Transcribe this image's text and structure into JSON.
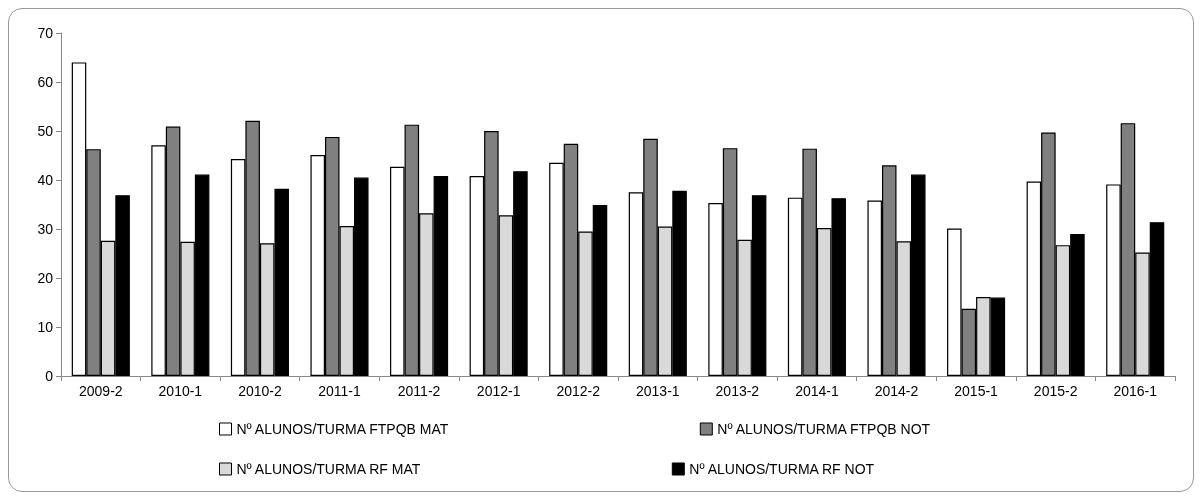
{
  "chart_data": {
    "type": "bar",
    "categories": [
      "2009-2",
      "2010-1",
      "2010-2",
      "2011-1",
      "2011-2",
      "2012-1",
      "2012-2",
      "2013-1",
      "2013-2",
      "2014-1",
      "2014-2",
      "2015-1",
      "2015-2",
      "2016-1"
    ],
    "series": [
      {
        "name": "Nº ALUNOS/TURMA FTPQB MAT",
        "color": "#ffffff",
        "values": [
          64,
          47.1,
          44.3,
          45.1,
          42.7,
          40.8,
          43.5,
          37.5,
          35.3,
          36.4,
          35.8,
          30.1,
          39.7,
          39.1
        ]
      },
      {
        "name": "Nº ALUNOS/TURMA FTPQB NOT",
        "color": "#808080",
        "values": [
          46.3,
          50.9,
          52.1,
          48.8,
          51.3,
          50.0,
          47.4,
          48.4,
          46.5,
          46.4,
          43.0,
          13.7,
          49.7,
          51.6
        ]
      },
      {
        "name": "Nº ALUNOS/TURMA RF MAT",
        "color": "#d9d9d9",
        "values": [
          27.6,
          27.4,
          27.1,
          30.6,
          33.2,
          32.8,
          29.5,
          30.5,
          27.8,
          30.2,
          27.5,
          16.1,
          26.7,
          25.2
        ]
      },
      {
        "name": "Nº ALUNOS/TURMA RF NOT",
        "color": "#000000",
        "values": [
          36.9,
          41.1,
          38.2,
          40.5,
          40.8,
          41.8,
          34.9,
          37.8,
          36.9,
          36.3,
          41.1,
          16.0,
          29.0,
          31.4
        ]
      }
    ],
    "ylim": [
      0,
      70
    ],
    "yticks": [
      0,
      10,
      20,
      30,
      40,
      50,
      60,
      70
    ],
    "grid": false,
    "legend": "bottom"
  }
}
